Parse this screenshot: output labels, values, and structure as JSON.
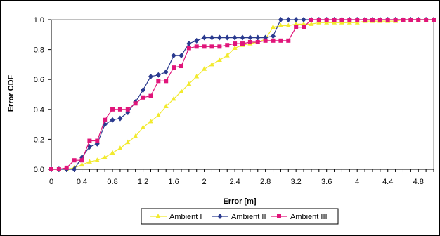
{
  "chart_data": {
    "type": "line",
    "xlabel": "Error [m]",
    "ylabel": "Error CDF",
    "xlim": [
      0,
      5.0
    ],
    "ylim": [
      0,
      1.0
    ],
    "x_ticks": [
      "0",
      "0.4",
      "0.8",
      "1.2",
      "1.6",
      "2",
      "2.4",
      "2.8",
      "3.2",
      "3.6",
      "4",
      "4.4",
      "4.8"
    ],
    "y_ticks": [
      "0.0",
      "0.2",
      "0.4",
      "0.6",
      "0.8",
      "1.0"
    ],
    "grid": "horizontal",
    "legend_position": "bottom",
    "series": [
      {
        "name": "Ambient I",
        "color": "#f2ea2e",
        "marker": "triangle",
        "points": [
          [
            0,
            0
          ],
          [
            0.1,
            0
          ],
          [
            0.2,
            0
          ],
          [
            0.3,
            0.01
          ],
          [
            0.4,
            0.03
          ],
          [
            0.5,
            0.05
          ],
          [
            0.6,
            0.06
          ],
          [
            0.7,
            0.08
          ],
          [
            0.8,
            0.11
          ],
          [
            0.9,
            0.14
          ],
          [
            1.0,
            0.18
          ],
          [
            1.1,
            0.22
          ],
          [
            1.2,
            0.28
          ],
          [
            1.3,
            0.32
          ],
          [
            1.4,
            0.36
          ],
          [
            1.5,
            0.42
          ],
          [
            1.6,
            0.47
          ],
          [
            1.7,
            0.52
          ],
          [
            1.8,
            0.57
          ],
          [
            1.9,
            0.62
          ],
          [
            2.0,
            0.67
          ],
          [
            2.1,
            0.7
          ],
          [
            2.2,
            0.73
          ],
          [
            2.3,
            0.76
          ],
          [
            2.4,
            0.81
          ],
          [
            2.5,
            0.83
          ],
          [
            2.6,
            0.84
          ],
          [
            2.7,
            0.85
          ],
          [
            2.8,
            0.87
          ],
          [
            2.9,
            0.95
          ],
          [
            3.0,
            0.96
          ],
          [
            3.1,
            0.96
          ],
          [
            3.2,
            0.97
          ],
          [
            3.3,
            0.97
          ],
          [
            3.4,
            0.97
          ],
          [
            3.5,
            0.98
          ],
          [
            3.6,
            0.98
          ],
          [
            3.7,
            0.98
          ],
          [
            3.8,
            0.98
          ],
          [
            3.9,
            0.98
          ],
          [
            4.0,
            0.98
          ],
          [
            4.1,
            0.99
          ],
          [
            4.2,
            0.99
          ],
          [
            4.3,
            0.99
          ],
          [
            4.4,
            0.99
          ],
          [
            4.5,
            0.99
          ],
          [
            4.6,
            1.0
          ],
          [
            4.7,
            1.0
          ],
          [
            4.8,
            1.0
          ],
          [
            4.9,
            1.0
          ],
          [
            5.0,
            1.0
          ]
        ]
      },
      {
        "name": "Ambient II",
        "color": "#2a3a8f",
        "marker": "diamond",
        "points": [
          [
            0,
            0
          ],
          [
            0.1,
            0
          ],
          [
            0.2,
            0
          ],
          [
            0.3,
            0
          ],
          [
            0.4,
            0.08
          ],
          [
            0.5,
            0.15
          ],
          [
            0.6,
            0.17
          ],
          [
            0.7,
            0.3
          ],
          [
            0.8,
            0.33
          ],
          [
            0.9,
            0.34
          ],
          [
            1.0,
            0.38
          ],
          [
            1.1,
            0.45
          ],
          [
            1.2,
            0.53
          ],
          [
            1.3,
            0.62
          ],
          [
            1.4,
            0.63
          ],
          [
            1.5,
            0.65
          ],
          [
            1.6,
            0.76
          ],
          [
            1.7,
            0.76
          ],
          [
            1.8,
            0.84
          ],
          [
            1.9,
            0.86
          ],
          [
            2.0,
            0.88
          ],
          [
            2.1,
            0.88
          ],
          [
            2.2,
            0.88
          ],
          [
            2.3,
            0.88
          ],
          [
            2.4,
            0.88
          ],
          [
            2.5,
            0.88
          ],
          [
            2.6,
            0.88
          ],
          [
            2.7,
            0.88
          ],
          [
            2.8,
            0.88
          ],
          [
            2.9,
            0.89
          ],
          [
            3.0,
            1.0
          ],
          [
            3.1,
            1.0
          ],
          [
            3.2,
            1.0
          ],
          [
            3.3,
            1.0
          ],
          [
            3.4,
            1.0
          ],
          [
            3.5,
            1.0
          ],
          [
            3.6,
            1.0
          ],
          [
            3.7,
            1.0
          ],
          [
            3.8,
            1.0
          ],
          [
            3.9,
            1.0
          ],
          [
            4.0,
            1.0
          ],
          [
            4.1,
            1.0
          ],
          [
            4.2,
            1.0
          ],
          [
            4.3,
            1.0
          ],
          [
            4.4,
            1.0
          ],
          [
            4.5,
            1.0
          ],
          [
            4.6,
            1.0
          ],
          [
            4.7,
            1.0
          ],
          [
            4.8,
            1.0
          ],
          [
            4.9,
            1.0
          ],
          [
            5.0,
            1.0
          ]
        ]
      },
      {
        "name": "Ambient III",
        "color": "#e0157a",
        "marker": "square",
        "points": [
          [
            0,
            0
          ],
          [
            0.1,
            0
          ],
          [
            0.2,
            0.01
          ],
          [
            0.3,
            0.06
          ],
          [
            0.4,
            0.06
          ],
          [
            0.5,
            0.19
          ],
          [
            0.6,
            0.19
          ],
          [
            0.7,
            0.33
          ],
          [
            0.8,
            0.4
          ],
          [
            0.9,
            0.4
          ],
          [
            1.0,
            0.4
          ],
          [
            1.1,
            0.44
          ],
          [
            1.2,
            0.48
          ],
          [
            1.3,
            0.49
          ],
          [
            1.4,
            0.59
          ],
          [
            1.5,
            0.59
          ],
          [
            1.6,
            0.68
          ],
          [
            1.7,
            0.69
          ],
          [
            1.8,
            0.81
          ],
          [
            1.9,
            0.82
          ],
          [
            2.0,
            0.82
          ],
          [
            2.1,
            0.82
          ],
          [
            2.2,
            0.82
          ],
          [
            2.3,
            0.83
          ],
          [
            2.4,
            0.84
          ],
          [
            2.5,
            0.84
          ],
          [
            2.6,
            0.85
          ],
          [
            2.7,
            0.85
          ],
          [
            2.8,
            0.86
          ],
          [
            2.9,
            0.86
          ],
          [
            3.0,
            0.86
          ],
          [
            3.1,
            0.86
          ],
          [
            3.2,
            0.95
          ],
          [
            3.3,
            0.95
          ],
          [
            3.4,
            1.0
          ],
          [
            3.5,
            1.0
          ],
          [
            3.6,
            1.0
          ],
          [
            3.7,
            1.0
          ],
          [
            3.8,
            1.0
          ],
          [
            3.9,
            1.0
          ],
          [
            4.0,
            1.0
          ],
          [
            4.1,
            1.0
          ],
          [
            4.2,
            1.0
          ],
          [
            4.3,
            1.0
          ],
          [
            4.4,
            1.0
          ],
          [
            4.5,
            1.0
          ],
          [
            4.6,
            1.0
          ],
          [
            4.7,
            1.0
          ],
          [
            4.8,
            1.0
          ],
          [
            4.9,
            1.0
          ],
          [
            5.0,
            1.0
          ]
        ]
      }
    ]
  }
}
